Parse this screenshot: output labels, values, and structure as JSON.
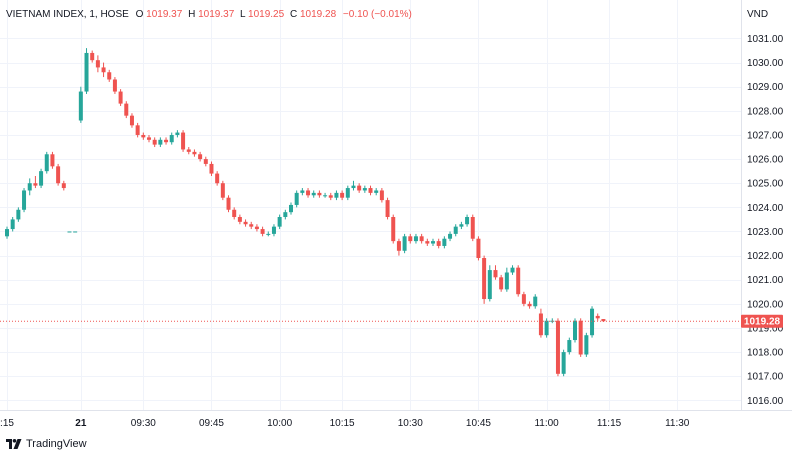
{
  "header": {
    "symbol": "VIETNAM INDEX, 1, HOSE",
    "o_label": "O",
    "o_value": "1019.37",
    "h_label": "H",
    "h_value": "1019.37",
    "l_label": "L",
    "l_value": "1019.25",
    "c_label": "C",
    "c_value": "1019.28",
    "change": "−0.10 (−0.01%)"
  },
  "currency": "VND",
  "last_price_label": "1019.28",
  "brand": {
    "name": "TradingView",
    "icon": "tradingview-logo-icon"
  },
  "colors": {
    "up": "#26a69a",
    "down": "#ef5350",
    "last_price": "#ef5350"
  },
  "chart_data": {
    "type": "candlestick",
    "title": "VIETNAM INDEX, 1, HOSE",
    "ylabel": "VND",
    "ylim": [
      1015.6,
      1031.6
    ],
    "y_ticks": [
      1016,
      1017,
      1018,
      1019,
      1020,
      1021,
      1022,
      1023,
      1024,
      1025,
      1026,
      1027,
      1028,
      1029,
      1030,
      1031
    ],
    "y_tick_labels": [
      "1016.00",
      "1017.00",
      "1018.00",
      "1019.00",
      "1020.00",
      "1021.00",
      "1022.00",
      "1023.00",
      "1024.00",
      "1025.00",
      "1026.00",
      "1027.00",
      "1028.00",
      "1029.00",
      "1030.00",
      "1031.00"
    ],
    "x_ticks": [
      {
        "label": ":15",
        "bar": 0
      },
      {
        "label": "21",
        "bar": 13
      },
      {
        "label": "09:30",
        "bar": 24
      },
      {
        "label": "09:45",
        "bar": 36
      },
      {
        "label": "10:00",
        "bar": 48
      },
      {
        "label": "10:15",
        "bar": 59
      },
      {
        "label": "10:30",
        "bar": 71
      },
      {
        "label": "10:45",
        "bar": 83
      },
      {
        "label": "11:00",
        "bar": 95
      },
      {
        "label": "11:15",
        "bar": 106
      },
      {
        "label": "11:30",
        "bar": 118
      }
    ],
    "grid": true,
    "last_price": 1019.28,
    "candles": [
      [
        1022.8,
        1023.2,
        1022.7,
        1023.1
      ],
      [
        1023.1,
        1023.6,
        1023.0,
        1023.5
      ],
      [
        1023.5,
        1024.0,
        1023.4,
        1023.9
      ],
      [
        1023.9,
        1024.8,
        1023.8,
        1024.7
      ],
      [
        1024.7,
        1025.2,
        1024.5,
        1025.0
      ],
      [
        1025.0,
        1025.3,
        1024.8,
        1024.9
      ],
      [
        1024.9,
        1025.6,
        1024.8,
        1025.5
      ],
      [
        1025.5,
        1026.3,
        1025.4,
        1026.2
      ],
      [
        1026.2,
        1026.3,
        1025.6,
        1025.7
      ],
      [
        1025.7,
        1025.8,
        1024.9,
        1025.0
      ],
      [
        1025.0,
        1025.1,
        1024.7,
        1024.8
      ],
      [
        1023.0,
        1023.0,
        1023.0,
        1023.0
      ],
      [
        1023.0,
        1023.0,
        1023.0,
        1023.0
      ],
      [
        1027.6,
        1029.0,
        1027.5,
        1028.8
      ],
      [
        1028.8,
        1030.6,
        1028.7,
        1030.4
      ],
      [
        1030.4,
        1030.5,
        1030.0,
        1030.1
      ],
      [
        1030.1,
        1030.3,
        1029.6,
        1029.8
      ],
      [
        1029.8,
        1030.0,
        1029.4,
        1029.6
      ],
      [
        1029.6,
        1029.7,
        1029.2,
        1029.3
      ],
      [
        1029.3,
        1029.4,
        1028.7,
        1028.8
      ],
      [
        1028.8,
        1028.9,
        1028.2,
        1028.3
      ],
      [
        1028.3,
        1028.4,
        1027.7,
        1027.8
      ],
      [
        1027.8,
        1027.9,
        1027.3,
        1027.4
      ],
      [
        1027.4,
        1027.5,
        1026.9,
        1027.0
      ],
      [
        1027.0,
        1027.1,
        1026.8,
        1026.9
      ],
      [
        1026.9,
        1027.0,
        1026.7,
        1026.8
      ],
      [
        1026.8,
        1026.9,
        1026.5,
        1026.6
      ],
      [
        1026.6,
        1026.9,
        1026.5,
        1026.8
      ],
      [
        1026.8,
        1026.9,
        1026.6,
        1026.7
      ],
      [
        1026.7,
        1027.1,
        1026.6,
        1027.0
      ],
      [
        1027.0,
        1027.2,
        1026.9,
        1027.1
      ],
      [
        1027.1,
        1027.2,
        1026.3,
        1026.4
      ],
      [
        1026.4,
        1026.5,
        1026.2,
        1026.3
      ],
      [
        1026.3,
        1026.4,
        1026.1,
        1026.2
      ],
      [
        1026.2,
        1026.3,
        1025.9,
        1026.0
      ],
      [
        1026.0,
        1026.1,
        1025.7,
        1025.8
      ],
      [
        1025.8,
        1025.9,
        1025.3,
        1025.4
      ],
      [
        1025.4,
        1025.5,
        1024.9,
        1025.0
      ],
      [
        1025.0,
        1025.1,
        1024.3,
        1024.4
      ],
      [
        1024.4,
        1024.5,
        1023.8,
        1023.9
      ],
      [
        1023.9,
        1024.0,
        1023.5,
        1023.6
      ],
      [
        1023.6,
        1023.7,
        1023.3,
        1023.4
      ],
      [
        1023.4,
        1023.5,
        1023.2,
        1023.3
      ],
      [
        1023.3,
        1023.4,
        1023.1,
        1023.2
      ],
      [
        1023.2,
        1023.3,
        1023.0,
        1023.1
      ],
      [
        1023.1,
        1023.2,
        1022.8,
        1022.9
      ],
      [
        1022.9,
        1023.0,
        1022.8,
        1022.9
      ],
      [
        1022.9,
        1023.3,
        1022.8,
        1023.2
      ],
      [
        1023.2,
        1023.7,
        1023.1,
        1023.6
      ],
      [
        1023.6,
        1023.9,
        1023.5,
        1023.8
      ],
      [
        1023.8,
        1024.2,
        1023.7,
        1024.1
      ],
      [
        1024.1,
        1024.7,
        1024.0,
        1024.6
      ],
      [
        1024.6,
        1024.8,
        1024.5,
        1024.7
      ],
      [
        1024.7,
        1024.8,
        1024.4,
        1024.5
      ],
      [
        1024.5,
        1024.7,
        1024.4,
        1024.6
      ],
      [
        1024.6,
        1024.7,
        1024.4,
        1024.5
      ],
      [
        1024.5,
        1024.6,
        1024.4,
        1024.5
      ],
      [
        1024.5,
        1024.6,
        1024.3,
        1024.4
      ],
      [
        1024.4,
        1024.7,
        1024.3,
        1024.6
      ],
      [
        1024.6,
        1024.7,
        1024.3,
        1024.4
      ],
      [
        1024.4,
        1024.9,
        1024.3,
        1024.8
      ],
      [
        1024.8,
        1025.1,
        1024.7,
        1024.9
      ],
      [
        1024.9,
        1025.0,
        1024.6,
        1024.7
      ],
      [
        1024.7,
        1024.9,
        1024.6,
        1024.8
      ],
      [
        1024.8,
        1024.9,
        1024.5,
        1024.6
      ],
      [
        1024.6,
        1024.8,
        1024.5,
        1024.7
      ],
      [
        1024.7,
        1024.8,
        1024.2,
        1024.3
      ],
      [
        1024.3,
        1024.4,
        1023.5,
        1023.6
      ],
      [
        1023.6,
        1023.7,
        1022.5,
        1022.6
      ],
      [
        1022.6,
        1022.7,
        1022.0,
        1022.2
      ],
      [
        1022.2,
        1022.9,
        1022.1,
        1022.8
      ],
      [
        1022.8,
        1022.9,
        1022.5,
        1022.6
      ],
      [
        1022.6,
        1022.9,
        1022.5,
        1022.8
      ],
      [
        1022.8,
        1022.9,
        1022.5,
        1022.6
      ],
      [
        1022.6,
        1022.7,
        1022.4,
        1022.5
      ],
      [
        1022.5,
        1022.7,
        1022.4,
        1022.6
      ],
      [
        1022.6,
        1022.7,
        1022.3,
        1022.4
      ],
      [
        1022.4,
        1022.8,
        1022.3,
        1022.7
      ],
      [
        1022.7,
        1023.0,
        1022.6,
        1022.9
      ],
      [
        1022.9,
        1023.3,
        1022.8,
        1023.2
      ],
      [
        1023.2,
        1023.4,
        1023.1,
        1023.3
      ],
      [
        1023.3,
        1023.7,
        1023.2,
        1023.6
      ],
      [
        1023.6,
        1023.7,
        1022.6,
        1022.7
      ],
      [
        1022.7,
        1022.8,
        1021.8,
        1021.9
      ],
      [
        1021.9,
        1022.0,
        1020.0,
        1020.2
      ],
      [
        1020.2,
        1021.6,
        1020.1,
        1021.4
      ],
      [
        1021.4,
        1021.6,
        1021.0,
        1021.1
      ],
      [
        1021.1,
        1021.2,
        1020.5,
        1020.6
      ],
      [
        1020.6,
        1021.5,
        1020.5,
        1021.3
      ],
      [
        1021.3,
        1021.6,
        1021.2,
        1021.5
      ],
      [
        1021.5,
        1021.6,
        1020.3,
        1020.4
      ],
      [
        1020.4,
        1020.5,
        1019.9,
        1020.0
      ],
      [
        1020.0,
        1020.1,
        1019.8,
        1019.9
      ],
      [
        1019.9,
        1020.4,
        1019.8,
        1020.3
      ],
      [
        1019.6,
        1019.8,
        1018.6,
        1018.7
      ],
      [
        1018.7,
        1019.4,
        1018.6,
        1019.3
      ],
      [
        1019.3,
        1019.4,
        1019.2,
        1019.3
      ],
      [
        1019.3,
        1019.4,
        1017.0,
        1017.1
      ],
      [
        1017.1,
        1018.1,
        1017.0,
        1018.0
      ],
      [
        1018.0,
        1018.6,
        1017.9,
        1018.5
      ],
      [
        1018.5,
        1019.4,
        1018.4,
        1019.3
      ],
      [
        1019.3,
        1019.4,
        1017.8,
        1017.9
      ],
      [
        1017.9,
        1018.8,
        1017.8,
        1018.7
      ],
      [
        1018.7,
        1019.9,
        1018.6,
        1019.8
      ],
      [
        1019.5,
        1019.6,
        1019.3,
        1019.4
      ],
      [
        1019.37,
        1019.37,
        1019.25,
        1019.28
      ]
    ]
  }
}
